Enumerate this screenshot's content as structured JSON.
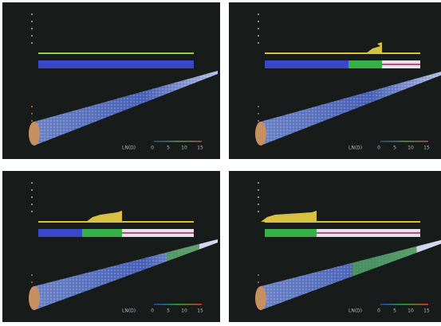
{
  "panels": [
    {
      "legend": {
        "label": "LN(D)",
        "ticks": [
          "0",
          "5",
          "10",
          "15"
        ]
      }
    },
    {
      "legend": {
        "label": "LN(D)",
        "ticks": [
          "0",
          "5",
          "10",
          "15"
        ]
      }
    },
    {
      "legend": {
        "label": "LN(D)",
        "ticks": [
          "0",
          "5",
          "10",
          "15"
        ]
      }
    },
    {
      "legend": {
        "label": "LN(D)",
        "ticks": [
          "0",
          "5",
          "10",
          "15"
        ]
      }
    }
  ]
}
